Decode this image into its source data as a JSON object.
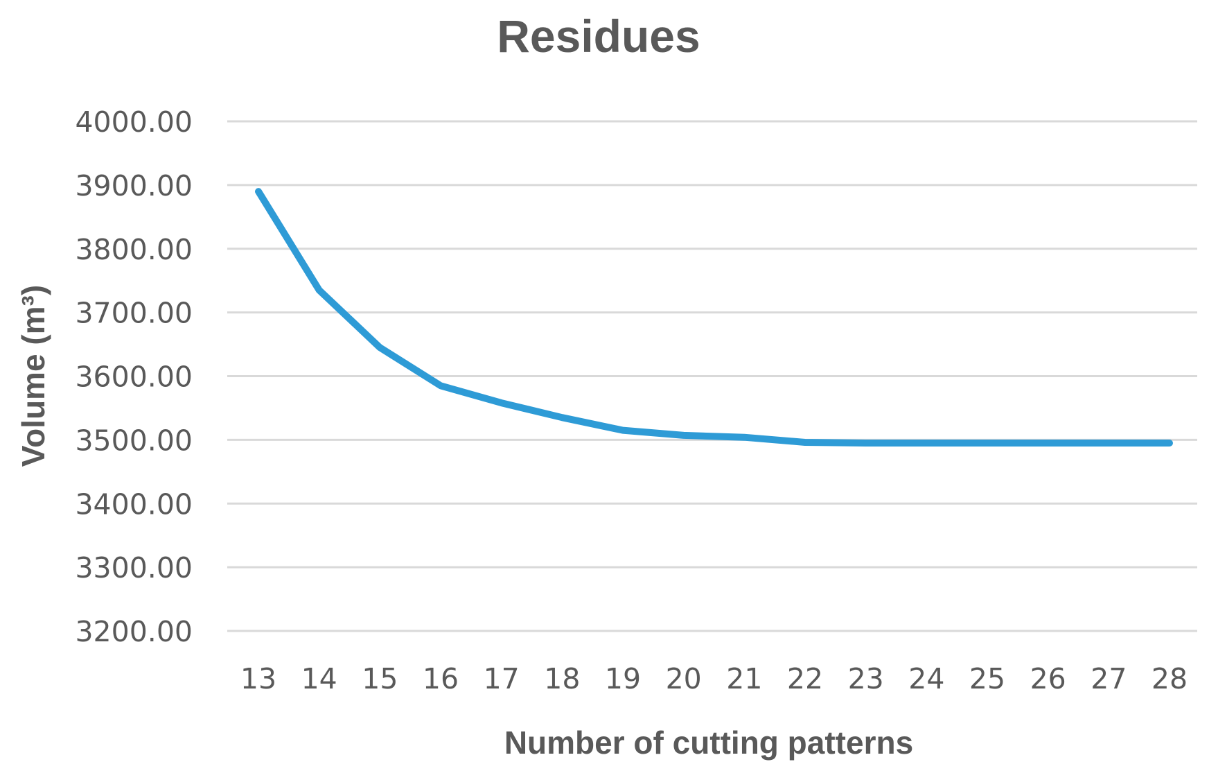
{
  "chart_data": {
    "type": "line",
    "title": "Residues",
    "xlabel": "Number of cutting patterns",
    "ylabel": "Volume (m³)",
    "categories": [
      "13",
      "14",
      "15",
      "16",
      "17",
      "18",
      "19",
      "20",
      "21",
      "22",
      "23",
      "24",
      "25",
      "26",
      "27",
      "28"
    ],
    "series": [
      {
        "values": [
          3890,
          3735,
          3645,
          3585,
          3558,
          3535,
          3515,
          3507,
          3504,
          3496,
          3495,
          3495,
          3495,
          3495,
          3495,
          3495
        ]
      }
    ],
    "ylim": [
      3200,
      4000
    ],
    "yticks": [
      "3200.00",
      "3300.00",
      "3400.00",
      "3500.00",
      "3600.00",
      "3700.00",
      "3800.00",
      "3900.00",
      "4000.00"
    ],
    "grid": true,
    "legend": "none",
    "colors": {
      "series": "#2e9bd6",
      "grid": "#d9d9d9",
      "text": "#595959"
    }
  }
}
